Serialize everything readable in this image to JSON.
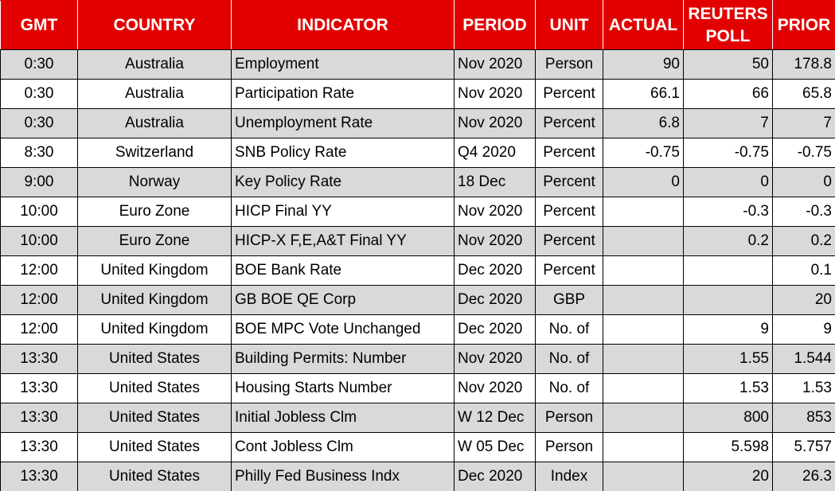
{
  "table": {
    "columns": [
      "GMT",
      "COUNTRY",
      "INDICATOR",
      "PERIOD",
      "UNIT",
      "ACTUAL",
      "REUTERS POLL",
      "PRIOR"
    ],
    "rows": [
      {
        "gmt": "0:30",
        "country": "Australia",
        "indicator": "Employment",
        "period": "Nov 2020",
        "unit": "Person",
        "actual": "90",
        "poll": "50",
        "prior": "178.8"
      },
      {
        "gmt": "0:30",
        "country": "Australia",
        "indicator": "Participation Rate",
        "period": "Nov 2020",
        "unit": "Percent",
        "actual": "66.1",
        "poll": "66",
        "prior": "65.8"
      },
      {
        "gmt": "0:30",
        "country": "Australia",
        "indicator": "Unemployment Rate",
        "period": "Nov 2020",
        "unit": "Percent",
        "actual": "6.8",
        "poll": "7",
        "prior": "7"
      },
      {
        "gmt": "8:30",
        "country": "Switzerland",
        "indicator": "SNB Policy Rate",
        "period": "Q4 2020",
        "unit": "Percent",
        "actual": "-0.75",
        "poll": "-0.75",
        "prior": "-0.75"
      },
      {
        "gmt": "9:00",
        "country": "Norway",
        "indicator": "Key Policy Rate",
        "period": "18 Dec",
        "unit": "Percent",
        "actual": "0",
        "poll": "0",
        "prior": "0"
      },
      {
        "gmt": "10:00",
        "country": "Euro Zone",
        "indicator": "HICP Final YY",
        "period": "Nov 2020",
        "unit": "Percent",
        "poll": "-0.3",
        "prior": "-0.3"
      },
      {
        "gmt": "10:00",
        "country": "Euro Zone",
        "indicator": "HICP-X F,E,A&T Final YY",
        "period": "Nov 2020",
        "unit": "Percent",
        "poll": "0.2",
        "prior": "0.2"
      },
      {
        "gmt": "12:00",
        "country": "United Kingdom",
        "indicator": "BOE Bank Rate",
        "period": "Dec 2020",
        "unit": "Percent",
        "prior": "0.1"
      },
      {
        "gmt": "12:00",
        "country": "United Kingdom",
        "indicator": "GB BOE QE Corp",
        "period": "Dec 2020",
        "unit": "GBP",
        "prior": "20"
      },
      {
        "gmt": "12:00",
        "country": "United Kingdom",
        "indicator": "BOE MPC Vote Unchanged",
        "period": "Dec 2020",
        "unit": "No. of",
        "poll": "9",
        "prior": "9"
      },
      {
        "gmt": "13:30",
        "country": "United States",
        "indicator": "Building Permits: Number",
        "period": "Nov 2020",
        "unit": "No. of",
        "poll": "1.55",
        "prior": "1.544"
      },
      {
        "gmt": "13:30",
        "country": "United States",
        "indicator": "Housing Starts Number",
        "period": "Nov 2020",
        "unit": "No. of",
        "poll": "1.53",
        "prior": "1.53"
      },
      {
        "gmt": "13:30",
        "country": "United States",
        "indicator": "Initial Jobless Clm",
        "period": "W 12 Dec",
        "unit": "Person",
        "poll": "800",
        "prior": "853"
      },
      {
        "gmt": "13:30",
        "country": "United States",
        "indicator": "Cont Jobless Clm",
        "period": "W 05 Dec",
        "unit": "Person",
        "poll": "5.598",
        "prior": "5.757"
      },
      {
        "gmt": "13:30",
        "country": "United States",
        "indicator": "Philly Fed Business Indx",
        "period": "Dec 2020",
        "unit": "Index",
        "poll": "20",
        "prior": "26.3"
      }
    ]
  }
}
